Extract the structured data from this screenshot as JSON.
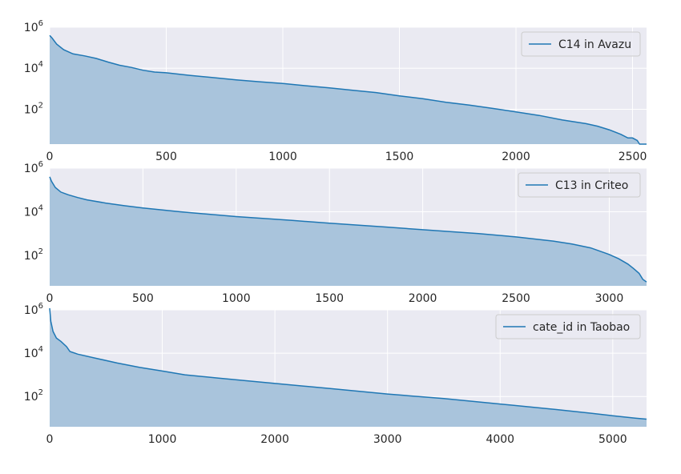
{
  "chart_data": [
    {
      "type": "area",
      "scale_y": "log",
      "grid": true,
      "legend_position": "top-right",
      "xlim": [
        0,
        2560
      ],
      "ylim": [
        2,
        1000000
      ],
      "x_ticks": [
        0,
        500,
        1000,
        1500,
        2000,
        2500
      ],
      "x_tick_labels": [
        "0",
        "500",
        "1000",
        "1500",
        "2000",
        "2500"
      ],
      "y_ticks": [
        100,
        10000,
        1000000
      ],
      "y_tick_labels": [
        {
          "base": "10",
          "exp": "2"
        },
        {
          "base": "10",
          "exp": "4"
        },
        {
          "base": "10",
          "exp": "6"
        }
      ],
      "series": [
        {
          "name": "C14 in Avazu",
          "color": "#1f77b4",
          "fill": "#a9c4dc",
          "x": [
            0,
            10,
            30,
            60,
            100,
            150,
            200,
            250,
            300,
            350,
            400,
            450,
            500,
            600,
            700,
            800,
            900,
            1000,
            1100,
            1200,
            1300,
            1400,
            1500,
            1600,
            1700,
            1800,
            1900,
            2000,
            2100,
            2200,
            2300,
            2350,
            2400,
            2450,
            2480,
            2500,
            2520,
            2530,
            2560
          ],
          "y": [
            400000,
            300000,
            150000,
            80000,
            50000,
            40000,
            30000,
            20000,
            14000,
            11000,
            8000,
            6500,
            6000,
            4500,
            3500,
            2700,
            2200,
            1800,
            1400,
            1100,
            850,
            650,
            450,
            330,
            220,
            160,
            110,
            75,
            50,
            30,
            20,
            15,
            10,
            6,
            4,
            4,
            3,
            2,
            2
          ]
        }
      ]
    },
    {
      "type": "area",
      "scale_y": "log",
      "grid": true,
      "legend_position": "top-right",
      "xlim": [
        0,
        3200
      ],
      "ylim": [
        4,
        1000000
      ],
      "x_ticks": [
        0,
        500,
        1000,
        1500,
        2000,
        2500,
        3000
      ],
      "x_tick_labels": [
        "0",
        "500",
        "1000",
        "1500",
        "2000",
        "2500",
        "3000"
      ],
      "y_ticks": [
        100,
        10000,
        1000000
      ],
      "y_tick_labels": [
        {
          "base": "10",
          "exp": "2"
        },
        {
          "base": "10",
          "exp": "4"
        },
        {
          "base": "10",
          "exp": "6"
        }
      ],
      "series": [
        {
          "name": "C13 in Criteo",
          "color": "#1f77b4",
          "fill": "#a9c4dc",
          "x": [
            0,
            10,
            30,
            60,
            100,
            150,
            200,
            300,
            400,
            500,
            700,
            1000,
            1300,
            1500,
            1800,
            2000,
            2300,
            2500,
            2700,
            2800,
            2900,
            3000,
            3050,
            3100,
            3130,
            3160,
            3180,
            3200
          ],
          "y": [
            400000,
            250000,
            130000,
            80000,
            60000,
            45000,
            35000,
            25000,
            19000,
            15000,
            10000,
            6000,
            4000,
            3000,
            2000,
            1500,
            1000,
            700,
            450,
            330,
            220,
            110,
            70,
            40,
            25,
            15,
            8,
            6
          ]
        }
      ]
    },
    {
      "type": "area",
      "scale_y": "log",
      "grid": true,
      "legend_position": "top-right",
      "xlim": [
        0,
        5300
      ],
      "ylim": [
        4,
        1000000
      ],
      "x_ticks": [
        0,
        1000,
        2000,
        3000,
        4000,
        5000
      ],
      "x_tick_labels": [
        "0",
        "1000",
        "2000",
        "3000",
        "4000",
        "5000"
      ],
      "y_ticks": [
        100,
        10000,
        1000000
      ],
      "y_tick_labels": [
        {
          "base": "10",
          "exp": "2"
        },
        {
          "base": "10",
          "exp": "4"
        },
        {
          "base": "10",
          "exp": "6"
        }
      ],
      "series": [
        {
          "name": "cate_id in Taobao",
          "color": "#1f77b4",
          "fill": "#a9c4dc",
          "x": [
            0,
            10,
            30,
            60,
            100,
            150,
            180,
            250,
            400,
            600,
            800,
            1000,
            1200,
            1500,
            2000,
            2500,
            3000,
            3500,
            4000,
            4500,
            4800,
            5000,
            5200,
            5300
          ],
          "y": [
            1200000,
            300000,
            100000,
            50000,
            35000,
            20000,
            12000,
            9000,
            6000,
            3500,
            2200,
            1500,
            1000,
            700,
            400,
            230,
            130,
            80,
            45,
            25,
            17,
            13,
            10,
            9
          ]
        }
      ]
    }
  ]
}
